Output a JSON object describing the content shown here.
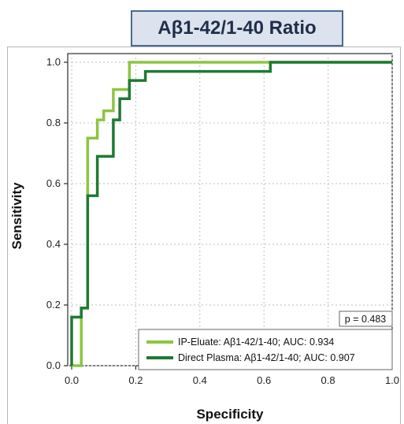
{
  "chart_data": {
    "type": "line",
    "title": "Aβ1-42/1-40 Ratio",
    "xlabel": "Specificity",
    "ylabel": "Sensitivity",
    "xlim": [
      0,
      1
    ],
    "ylim": [
      0,
      1
    ],
    "xticks": [
      "0.0",
      "0.2",
      "0.4",
      "0.6",
      "0.8",
      "1.0"
    ],
    "yticks": [
      "0.0",
      "0.2",
      "0.4",
      "0.6",
      "0.8",
      "1.0"
    ],
    "grid": true,
    "legend_position": "bottom-right",
    "annotation": "p = 0.483",
    "series": [
      {
        "name": "IP-Eluate: Aβ1-42/1-40; AUC: 0.934",
        "color": "#8cc63f",
        "points": [
          [
            0.0,
            0.0
          ],
          [
            0.03,
            0.0
          ],
          [
            0.03,
            0.19
          ],
          [
            0.05,
            0.19
          ],
          [
            0.05,
            0.22
          ],
          [
            0.05,
            0.75
          ],
          [
            0.08,
            0.75
          ],
          [
            0.08,
            0.81
          ],
          [
            0.1,
            0.81
          ],
          [
            0.1,
            0.84
          ],
          [
            0.13,
            0.84
          ],
          [
            0.13,
            0.91
          ],
          [
            0.18,
            0.91
          ],
          [
            0.18,
            1.0
          ],
          [
            1.0,
            1.0
          ]
        ]
      },
      {
        "name": "Direct Plasma: Aβ1-42/1-40; AUC: 0.907",
        "color": "#1e7a34",
        "points": [
          [
            0.0,
            0.0
          ],
          [
            0.0,
            0.16
          ],
          [
            0.03,
            0.16
          ],
          [
            0.03,
            0.19
          ],
          [
            0.05,
            0.19
          ],
          [
            0.05,
            0.56
          ],
          [
            0.08,
            0.56
          ],
          [
            0.08,
            0.69
          ],
          [
            0.13,
            0.69
          ],
          [
            0.13,
            0.81
          ],
          [
            0.15,
            0.81
          ],
          [
            0.15,
            0.88
          ],
          [
            0.18,
            0.88
          ],
          [
            0.18,
            0.94
          ],
          [
            0.23,
            0.94
          ],
          [
            0.23,
            0.97
          ],
          [
            0.62,
            0.97
          ],
          [
            0.62,
            1.0
          ],
          [
            1.0,
            1.0
          ]
        ]
      }
    ]
  }
}
